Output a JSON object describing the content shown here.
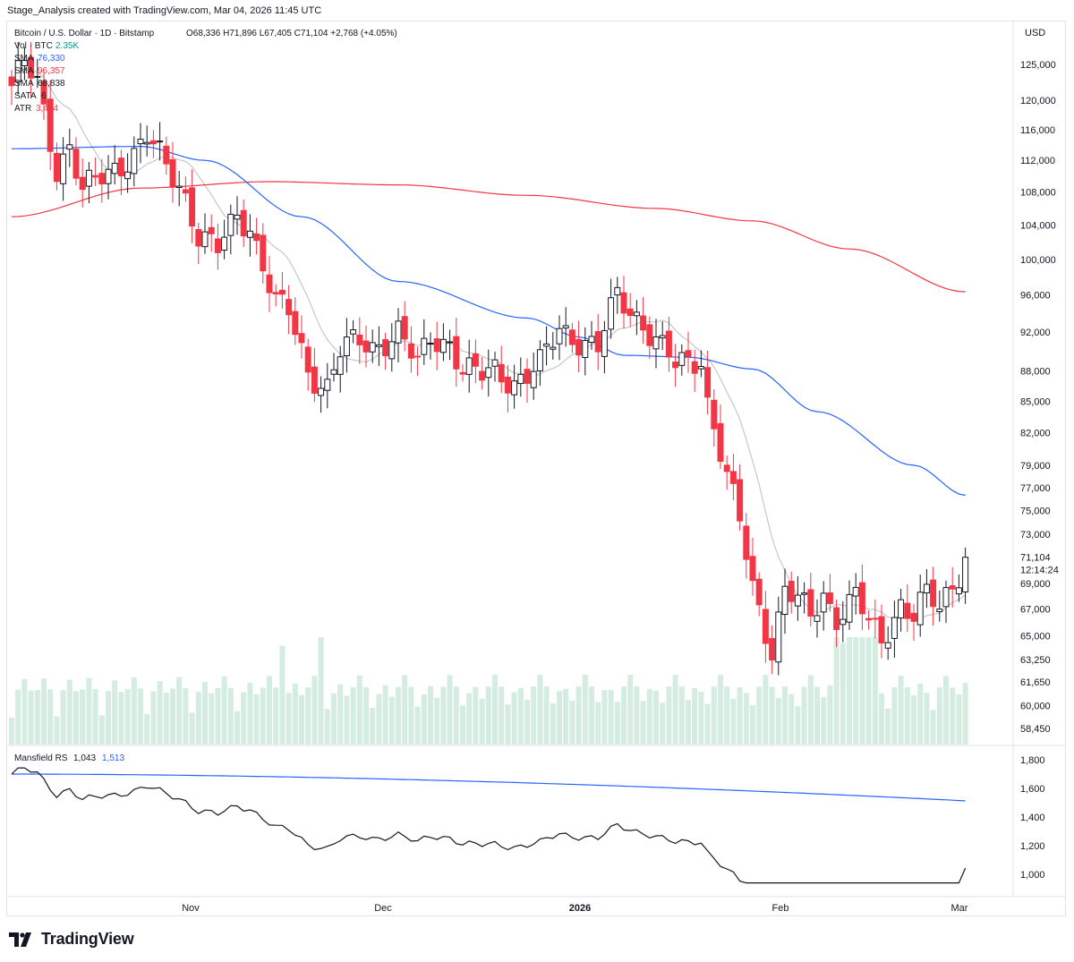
{
  "caption": "Stage_Analysis created with TradingView.com, Mar 04, 2026 11:45 UTC",
  "brand": "TradingView",
  "currency_label": "USD",
  "legend": {
    "symbol": "Bitcoin / U.S. Dollar · 1D · Bitstamp",
    "ohlc_text": "O68,336  H71,896  L67,405  C71,104  +2,768 (+4.05%)",
    "vol_label": "Vol · BTC",
    "vol_value": "2.35K",
    "sma1_label": "SMA",
    "sma1_value": "76,330",
    "sma2_label": "SMA",
    "sma2_value": "96,357",
    "sma3_label": "SMA",
    "sma3_value": "68,838",
    "sata_label": "SATA",
    "sata_value": "6",
    "atr_label": "ATR",
    "atr_value": "3,454",
    "rs_label": "Mansfield RS",
    "rs_value": "1,043",
    "rs_ma_value": "1,513"
  },
  "last_price": {
    "value": "71,104",
    "countdown": "12:14:24"
  },
  "colors": {
    "up": "#ffffff",
    "up_border": "#131722",
    "down": "#f23645",
    "sma50": "#2962ff",
    "sma200": "#f23645",
    "sma10": "#c7c7c7",
    "volume": "#d5ede0",
    "rs": "#131722",
    "rs_ma": "#2962ff",
    "vol_value": "#089981"
  },
  "chart_data": {
    "type": "candlestick",
    "price_axis": {
      "scale": "log",
      "ticks": [
        125000,
        120000,
        116000,
        112000,
        108000,
        104000,
        100000,
        96000,
        92000,
        88000,
        85000,
        82000,
        79000,
        77000,
        75000,
        73000,
        71104,
        69000,
        67000,
        65000,
        63250,
        61650,
        60000,
        58450
      ],
      "tick_labels": [
        "125,000",
        "120,000",
        "116,000",
        "112,000",
        "108,000",
        "104,000",
        "100,000",
        "96,000",
        "92,000",
        "88,000",
        "85,000",
        "82,000",
        "79,000",
        "77,000",
        "75,000",
        "73,000",
        "71,104",
        "69,000",
        "67,000",
        "65,000",
        "63,250",
        "61,650",
        "60,000",
        "58,450"
      ]
    },
    "rs_axis": {
      "ticks": [
        1800,
        1600,
        1400,
        1200,
        1000
      ],
      "tick_labels": [
        "1,800",
        "1,600",
        "1,400",
        "1,200",
        "1,000"
      ]
    },
    "time_axis": {
      "labels": [
        "Nov",
        "Dec",
        "2026",
        "Feb",
        "Mar"
      ],
      "bold": [
        false,
        false,
        true,
        false,
        false
      ]
    },
    "close_anchors": {
      "days": [
        0,
        2,
        4,
        7,
        9,
        11,
        16,
        19,
        21,
        24,
        26,
        27,
        29,
        32,
        35,
        37,
        41,
        43,
        46,
        49,
        51,
        54,
        56,
        60,
        63,
        65,
        68,
        70,
        73,
        75,
        78,
        80,
        82,
        85,
        88,
        91,
        94,
        96,
        98,
        100,
        103,
        105,
        107,
        108,
        111,
        113,
        115,
        118,
        120,
        122,
        124,
        126,
        128,
        130,
        131,
        133,
        135,
        138,
        140,
        142,
        144,
        146,
        148
      ],
      "closes": [
        122000,
        125000,
        122000,
        111000,
        114000,
        108000,
        111000,
        113000,
        115000,
        111000,
        109000,
        107500,
        103000,
        101000,
        105000,
        104000,
        95000,
        94000,
        88000,
        86500,
        90000,
        91000,
        90500,
        92000,
        88500,
        91500,
        91000,
        88000,
        87500,
        88200,
        87000,
        87500,
        88500,
        92500,
        91300,
        90200,
        96000,
        94500,
        93000,
        91000,
        88500,
        89000,
        89500,
        85000,
        77800,
        74000,
        68800,
        64000,
        68500,
        67500,
        66500,
        68200,
        66500,
        67300,
        68000,
        65800,
        64700,
        67500,
        66500,
        68000,
        67000,
        69000,
        71104
      ]
    },
    "last_bar": {
      "open": 68336,
      "high": 71896,
      "low": 67405,
      "close": 71104
    },
    "sma_endpoints": {
      "sma10": 68838,
      "sma50": 76330,
      "sma200": 96357
    },
    "volume_btc_last": "2.35K",
    "rs_endpoints": {
      "rs": 1043,
      "rs_ma": 1513
    }
  }
}
